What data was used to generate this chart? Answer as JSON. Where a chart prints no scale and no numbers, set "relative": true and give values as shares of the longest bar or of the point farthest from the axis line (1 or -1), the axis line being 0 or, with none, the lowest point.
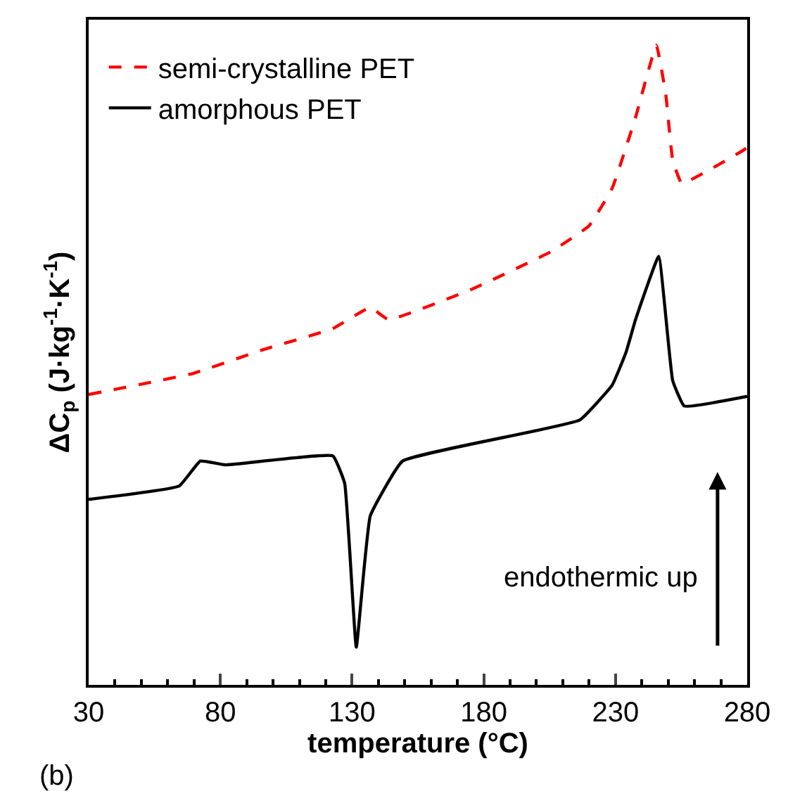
{
  "chart_data": {
    "type": "line",
    "relative": true,
    "xlabel": "temperature (°C)",
    "ylabel": "ΔC$_{p}$ (J·kg$^{-1}$·K$^{-1}$)",
    "xlim": [
      30,
      280
    ],
    "xticks": [
      30,
      80,
      130,
      180,
      230,
      280
    ],
    "legend": "top left",
    "marker": "none",
    "annotations": [
      "endothermic up",
      "(b)"
    ],
    "series": [
      {
        "name": "semi-crystalline PET",
        "color": "#ff0000",
        "line_style": "dashed",
        "x": [
          30,
          69.7,
          96.2,
          122.7,
          136.9,
          143.9,
          175.7,
          205.8,
          220,
          228.8,
          237.6,
          245.5,
          249.1,
          251.7,
          255.2,
          278.2,
          280
        ],
        "values": [
          0.454,
          0.487,
          0.524,
          0.557,
          0.59,
          0.571,
          0.619,
          0.678,
          0.718,
          0.777,
          0.887,
          1.0,
          0.923,
          0.821,
          0.784,
          0.835,
          0.84
        ]
      },
      {
        "name": "amorphous PET",
        "color": "#000000",
        "line_style": "solid",
        "x": [
          30,
          64.4,
          72.4,
          82.1,
          122.7,
          127.2,
          131.6,
          136.9,
          149.2,
          216.4,
          228.8,
          234,
          237.6,
          240,
          246.4,
          251.7,
          256.1,
          280
        ],
        "values": [
          0.29,
          0.311,
          0.35,
          0.344,
          0.358,
          0.315,
          0.059,
          0.264,
          0.35,
          0.414,
          0.469,
          0.52,
          0.571,
          0.6,
          0.67,
          0.476,
          0.436,
          0.451
        ]
      }
    ]
  }
}
